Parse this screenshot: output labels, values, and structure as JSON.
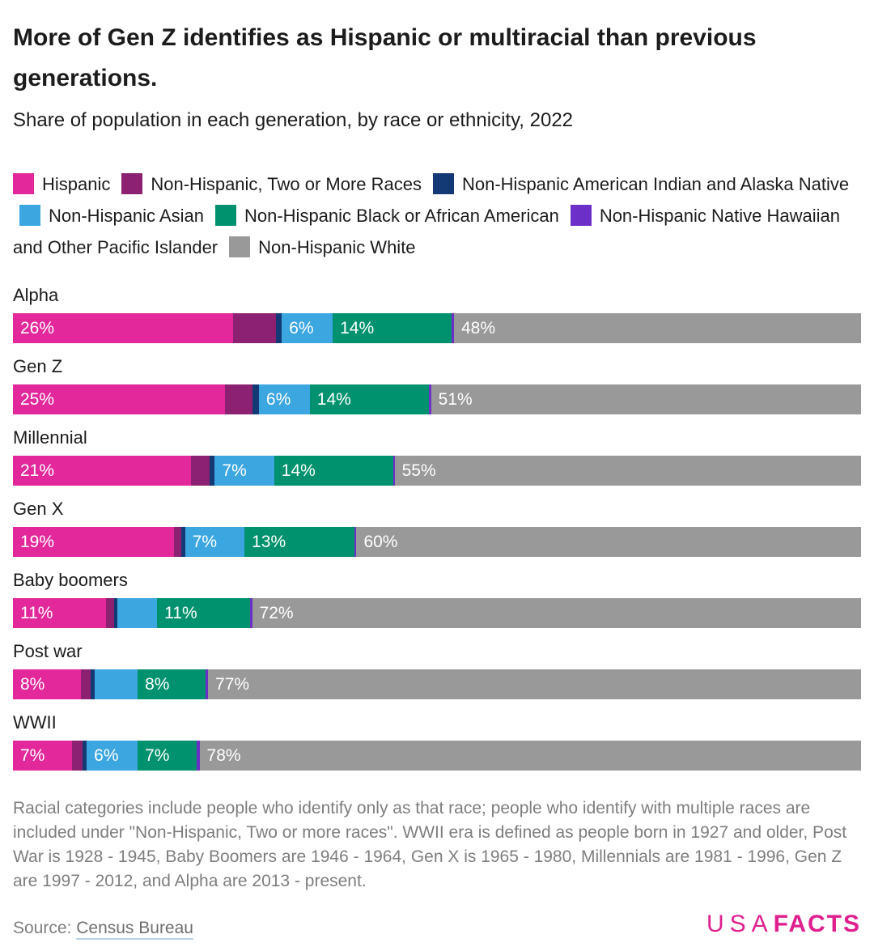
{
  "header": {
    "title": "More of Gen Z identifies as Hispanic or multiracial than previous generations.",
    "subtitle": "Share of population in each generation, by race or ethnicity, 2022"
  },
  "colors": {
    "hispanic": "#E2289B",
    "two_or_more": "#8B2170",
    "aian": "#143A75",
    "asian": "#3CA6E0",
    "black": "#00926E",
    "nhpi": "#6C30C9",
    "white": "#999999",
    "bar_label_text": "#FFFFFF",
    "logo_pink": "#E01F8F",
    "footnote_text": "#7E7E7E",
    "link_underline": "#B9D2EA"
  },
  "legend": {
    "items": [
      {
        "key": "hispanic",
        "label": "Hispanic"
      },
      {
        "key": "two_or_more",
        "label": "Non-Hispanic, Two or More Races"
      },
      {
        "key": "aian",
        "label": "Non-Hispanic American Indian and Alaska Native"
      },
      {
        "key": "asian",
        "label": "Non-Hispanic Asian"
      },
      {
        "key": "black",
        "label": "Non-Hispanic Black or African American"
      },
      {
        "key": "nhpi",
        "label": "Non-Hispanic Native Hawaiian and Other Pacific Islander"
      },
      {
        "key": "white",
        "label": "Non-Hispanic White"
      }
    ]
  },
  "chart_data": {
    "type": "bar",
    "stacked": true,
    "orientation": "horizontal",
    "unit": "%",
    "axis_range": [
      0,
      100
    ],
    "grid": false,
    "legend_position": "top",
    "title": "Share of population in each generation, by race or ethnicity, 2022",
    "categories": [
      "Alpha",
      "Gen Z",
      "Millennial",
      "Gen X",
      "Baby boomers",
      "Post war",
      "WWII"
    ],
    "series_keys": [
      "hispanic",
      "two_or_more",
      "aian",
      "asian",
      "black",
      "nhpi",
      "white"
    ],
    "rows": [
      {
        "generation": "Alpha",
        "segments": [
          {
            "key": "hispanic",
            "race": "Hispanic",
            "value": 26,
            "label": "26%"
          },
          {
            "key": "two_or_more",
            "race": "Non-Hispanic, Two or More Races",
            "value": 5,
            "label": ""
          },
          {
            "key": "aian",
            "race": "Non-Hispanic American Indian and Alaska Native",
            "value": 0.7,
            "label": ""
          },
          {
            "key": "asian",
            "race": "Non-Hispanic Asian",
            "value": 6,
            "label": "6%"
          },
          {
            "key": "black",
            "race": "Non-Hispanic Black or African American",
            "value": 14,
            "label": "14%"
          },
          {
            "key": "nhpi",
            "race": "Non-Hispanic Native Hawaiian and Other Pacific Islander",
            "value": 0.3,
            "label": ""
          },
          {
            "key": "white",
            "race": "Non-Hispanic White",
            "value": 48,
            "label": "48%"
          }
        ]
      },
      {
        "generation": "Gen Z",
        "segments": [
          {
            "key": "hispanic",
            "race": "Hispanic",
            "value": 25,
            "label": "25%"
          },
          {
            "key": "two_or_more",
            "race": "Non-Hispanic, Two or More Races",
            "value": 3.2,
            "label": ""
          },
          {
            "key": "aian",
            "race": "Non-Hispanic American Indian and Alaska Native",
            "value": 0.8,
            "label": ""
          },
          {
            "key": "asian",
            "race": "Non-Hispanic Asian",
            "value": 6,
            "label": "6%"
          },
          {
            "key": "black",
            "race": "Non-Hispanic Black or African American",
            "value": 14,
            "label": "14%"
          },
          {
            "key": "nhpi",
            "race": "Non-Hispanic Native Hawaiian and Other Pacific Islander",
            "value": 0.3,
            "label": ""
          },
          {
            "key": "white",
            "race": "Non-Hispanic White",
            "value": 50.7,
            "label": "51%"
          }
        ]
      },
      {
        "generation": "Millennial",
        "segments": [
          {
            "key": "hispanic",
            "race": "Hispanic",
            "value": 21,
            "label": "21%"
          },
          {
            "key": "two_or_more",
            "race": "Non-Hispanic, Two or More Races",
            "value": 2.2,
            "label": ""
          },
          {
            "key": "aian",
            "race": "Non-Hispanic American Indian and Alaska Native",
            "value": 0.6,
            "label": ""
          },
          {
            "key": "asian",
            "race": "Non-Hispanic Asian",
            "value": 7,
            "label": "7%"
          },
          {
            "key": "black",
            "race": "Non-Hispanic Black or African American",
            "value": 14,
            "label": "14%"
          },
          {
            "key": "nhpi",
            "race": "Non-Hispanic Native Hawaiian and Other Pacific Islander",
            "value": 0.2,
            "label": ""
          },
          {
            "key": "white",
            "race": "Non-Hispanic White",
            "value": 55,
            "label": "55%"
          }
        ]
      },
      {
        "generation": "Gen X",
        "segments": [
          {
            "key": "hispanic",
            "race": "Hispanic",
            "value": 19,
            "label": "19%"
          },
          {
            "key": "two_or_more",
            "race": "Non-Hispanic, Two or More Races",
            "value": 0.8,
            "label": ""
          },
          {
            "key": "aian",
            "race": "Non-Hispanic American Indian and Alaska Native",
            "value": 0.5,
            "label": ""
          },
          {
            "key": "asian",
            "race": "Non-Hispanic Asian",
            "value": 7,
            "label": "7%"
          },
          {
            "key": "black",
            "race": "Non-Hispanic Black or African American",
            "value": 13,
            "label": "13%"
          },
          {
            "key": "nhpi",
            "race": "Non-Hispanic Native Hawaiian and Other Pacific Islander",
            "value": 0.2,
            "label": ""
          },
          {
            "key": "white",
            "race": "Non-Hispanic White",
            "value": 59.5,
            "label": "60%"
          }
        ]
      },
      {
        "generation": "Baby boomers",
        "segments": [
          {
            "key": "hispanic",
            "race": "Hispanic",
            "value": 11,
            "label": "11%"
          },
          {
            "key": "two_or_more",
            "race": "Non-Hispanic, Two or More Races",
            "value": 0.9,
            "label": ""
          },
          {
            "key": "aian",
            "race": "Non-Hispanic American Indian and Alaska Native",
            "value": 0.4,
            "label": ""
          },
          {
            "key": "asian",
            "race": "Non-Hispanic Asian",
            "value": 4.7,
            "label": ""
          },
          {
            "key": "black",
            "race": "Non-Hispanic Black or African American",
            "value": 11,
            "label": "11%"
          },
          {
            "key": "nhpi",
            "race": "Non-Hispanic Native Hawaiian and Other Pacific Islander",
            "value": 0.2,
            "label": ""
          },
          {
            "key": "white",
            "race": "Non-Hispanic White",
            "value": 71.8,
            "label": "72%"
          }
        ]
      },
      {
        "generation": "Post war",
        "segments": [
          {
            "key": "hispanic",
            "race": "Hispanic",
            "value": 8,
            "label": "8%"
          },
          {
            "key": "two_or_more",
            "race": "Non-Hispanic, Two or More Races",
            "value": 1.2,
            "label": ""
          },
          {
            "key": "aian",
            "race": "Non-Hispanic American Indian and Alaska Native",
            "value": 0.4,
            "label": ""
          },
          {
            "key": "asian",
            "race": "Non-Hispanic Asian",
            "value": 5.1,
            "label": ""
          },
          {
            "key": "black",
            "race": "Non-Hispanic Black or African American",
            "value": 8,
            "label": "8%"
          },
          {
            "key": "nhpi",
            "race": "Non-Hispanic Native Hawaiian and Other Pacific Islander",
            "value": 0.3,
            "label": ""
          },
          {
            "key": "white",
            "race": "Non-Hispanic White",
            "value": 77,
            "label": "77%"
          }
        ]
      },
      {
        "generation": "WWII",
        "segments": [
          {
            "key": "hispanic",
            "race": "Hispanic",
            "value": 7,
            "label": "7%"
          },
          {
            "key": "two_or_more",
            "race": "Non-Hispanic, Two or More Races",
            "value": 1.2,
            "label": ""
          },
          {
            "key": "aian",
            "race": "Non-Hispanic American Indian and Alaska Native",
            "value": 0.5,
            "label": ""
          },
          {
            "key": "asian",
            "race": "Non-Hispanic Asian",
            "value": 6,
            "label": "6%"
          },
          {
            "key": "black",
            "race": "Non-Hispanic Black or African American",
            "value": 7,
            "label": "7%"
          },
          {
            "key": "nhpi",
            "race": "Non-Hispanic Native Hawaiian and Other Pacific Islander",
            "value": 0.3,
            "label": ""
          },
          {
            "key": "white",
            "race": "Non-Hispanic White",
            "value": 78,
            "label": "78%"
          }
        ]
      }
    ]
  },
  "footnote": "Racial categories include people who identify only as that race; people who identify with multiple races are included under \"Non-Hispanic, Two or more races\". WWII era is defined as people born in 1927 and older, Post War is 1928 - 1945, Baby Boomers are 1946 - 1964, Gen X is 1965 - 1980, Millennials are 1981 - 1996, Gen Z are 1997 - 2012, and Alpha are 2013 - present.",
  "source": {
    "prefix": "Source: ",
    "link": "Census Bureau"
  },
  "logo": {
    "usa": "USA",
    "facts": "FACTS"
  }
}
